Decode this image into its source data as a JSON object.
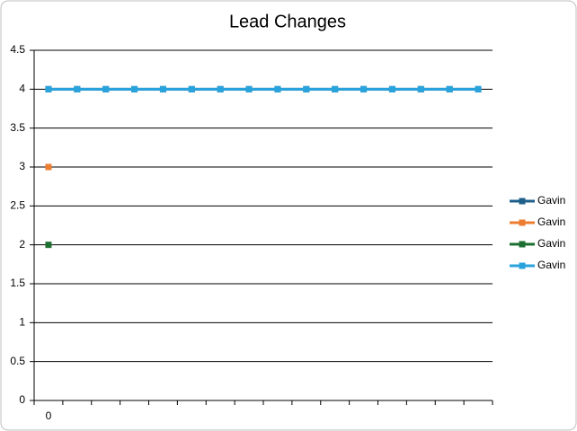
{
  "chart_data": {
    "type": "line",
    "title": "Lead Changes",
    "categories": [
      "0",
      null,
      null,
      null,
      null,
      null,
      null,
      null,
      null,
      null,
      null,
      null,
      null,
      null,
      null,
      null
    ],
    "series": [
      {
        "name": "Gavin",
        "color": "#1f5f8b",
        "values": [
          4,
          4,
          4,
          4,
          4,
          4,
          4,
          4,
          4,
          4,
          4,
          4,
          4,
          4,
          4,
          4
        ]
      },
      {
        "name": "Gavin",
        "color": "#ed7d31",
        "values": [
          3,
          null,
          null,
          null,
          null,
          null,
          null,
          null,
          null,
          null,
          null,
          null,
          null,
          null,
          null,
          null
        ]
      },
      {
        "name": "Gavin",
        "color": "#1e7032",
        "values": [
          2,
          null,
          null,
          null,
          null,
          null,
          null,
          null,
          null,
          null,
          null,
          null,
          null,
          null,
          null,
          null
        ]
      },
      {
        "name": "Gavin",
        "color": "#2aa3dc",
        "values": [
          4,
          4,
          4,
          4,
          4,
          4,
          4,
          4,
          4,
          4,
          4,
          4,
          4,
          4,
          4,
          4
        ]
      }
    ],
    "ylim": [
      0,
      4.5
    ],
    "yticks": [
      0,
      0.5,
      1,
      1.5,
      2,
      2.5,
      3,
      3.5,
      4,
      4.5
    ],
    "grid": true,
    "legend": "right"
  }
}
